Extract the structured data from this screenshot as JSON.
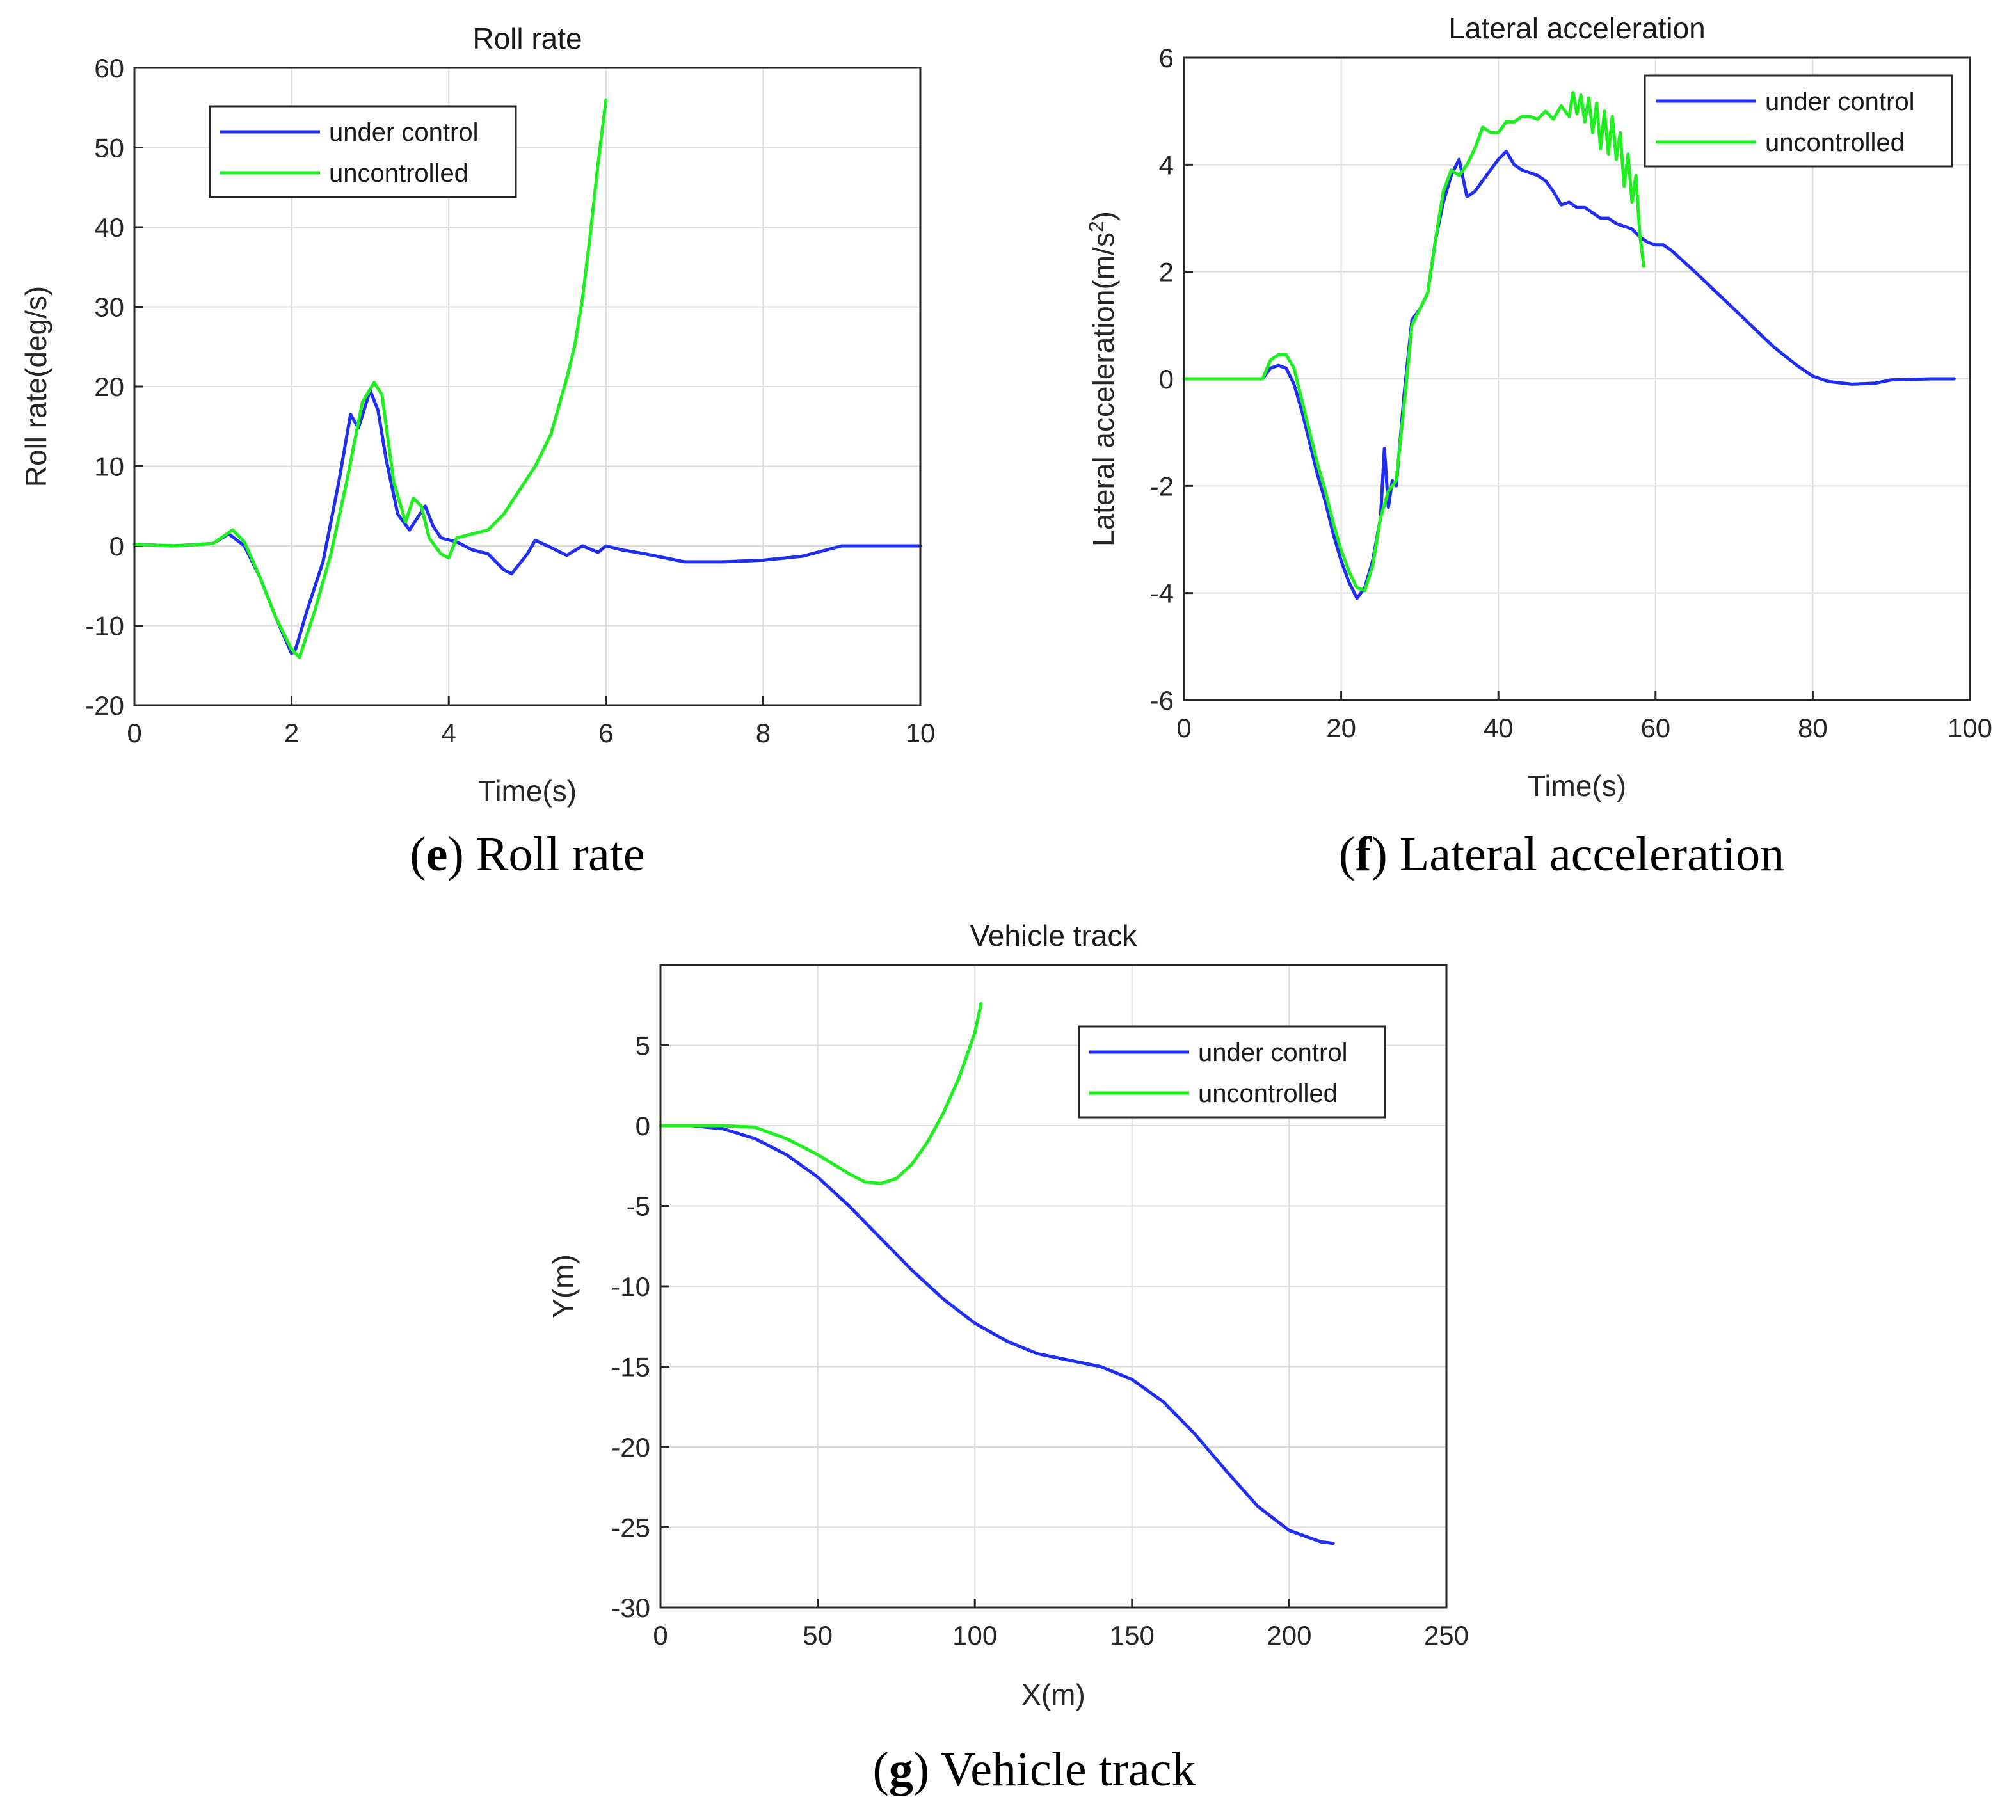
{
  "colors": {
    "under_control": "#1f2ef0",
    "uncontrolled": "#1ef01f"
  },
  "chart_data": [
    {
      "type": "line",
      "title": "Roll rate",
      "xlabel": "Time(s)",
      "ylabel": "Roll rate(deg/s)",
      "xlim": [
        0,
        10
      ],
      "ylim": [
        -20,
        60
      ],
      "xticks": [
        0,
        2,
        4,
        6,
        8,
        10
      ],
      "yticks": [
        -20,
        -10,
        0,
        10,
        20,
        30,
        40,
        50,
        60
      ],
      "xtick_labels": [
        "0",
        "2",
        "4",
        "6",
        "8",
        "10"
      ],
      "ytick_labels": [
        "-20",
        "-10",
        "0",
        "10",
        "20",
        "30",
        "40",
        "50",
        "60"
      ],
      "grid": true,
      "legend": "top-left",
      "caption_letter": "e",
      "caption_text": " Roll rate",
      "series": [
        {
          "name": "under control",
          "x": [
            0,
            0.5,
            1.0,
            1.2,
            1.4,
            1.6,
            1.8,
            2.0,
            2.05,
            2.2,
            2.4,
            2.6,
            2.75,
            2.85,
            3.0,
            3.1,
            3.2,
            3.35,
            3.5,
            3.6,
            3.7,
            3.8,
            3.9,
            4.1,
            4.3,
            4.5,
            4.7,
            4.8,
            5.0,
            5.1,
            5.3,
            5.5,
            5.7,
            5.9,
            6.0,
            6.2,
            6.5,
            7.0,
            7.5,
            8.0,
            8.5,
            9.0,
            9.5,
            10.0
          ],
          "y": [
            0.2,
            0,
            0.3,
            1.5,
            0,
            -4,
            -9,
            -13.5,
            -13,
            -8,
            -2,
            8,
            16.5,
            14.8,
            19.5,
            17,
            11,
            4,
            2,
            3.5,
            5,
            2.5,
            1,
            0.5,
            -0.5,
            -1,
            -3,
            -3.5,
            -1,
            0.7,
            -0.2,
            -1.2,
            0,
            -0.8,
            0,
            -0.5,
            -1,
            -2,
            -2,
            -1.8,
            -1.3,
            0,
            0,
            0
          ]
        },
        {
          "name": "uncontrolled",
          "x": [
            0,
            0.5,
            1.0,
            1.25,
            1.4,
            1.6,
            1.8,
            2.0,
            2.1,
            2.3,
            2.5,
            2.7,
            2.9,
            3.05,
            3.15,
            3.3,
            3.45,
            3.55,
            3.65,
            3.75,
            3.9,
            4.0,
            4.1,
            4.3,
            4.5,
            4.7,
            4.9,
            5.1,
            5.3,
            5.5,
            5.6,
            5.7,
            5.8,
            5.9,
            6.0
          ],
          "y": [
            0.2,
            0,
            0.3,
            2,
            0.5,
            -4,
            -9,
            -13,
            -14,
            -8,
            -1,
            8,
            18,
            20.5,
            19,
            8,
            3,
            6,
            5,
            1,
            -1,
            -1.5,
            1,
            1.5,
            2,
            4,
            7,
            10,
            14,
            21,
            25,
            31,
            39,
            48,
            56
          ]
        }
      ]
    },
    {
      "type": "line",
      "title": "Lateral acceleration",
      "xlabel": "Time(s)",
      "ylabel": "Lateral acceleration(m/s",
      "ylabel_sup": "2",
      "ylabel_close": ")",
      "xlim": [
        0,
        100
      ],
      "ylim": [
        -6,
        6
      ],
      "xticks": [
        0,
        20,
        40,
        60,
        80,
        100
      ],
      "yticks": [
        -6,
        -4,
        -2,
        0,
        2,
        4,
        6
      ],
      "xtick_labels": [
        "0",
        "20",
        "40",
        "60",
        "80",
        "100"
      ],
      "ytick_labels": [
        "-6",
        "-4",
        "-2",
        "0",
        "2",
        "4",
        "6"
      ],
      "grid": true,
      "legend": "top-right",
      "caption_letter": "f",
      "caption_text": " Lateral acceleration",
      "series": [
        {
          "name": "under control",
          "x": [
            0,
            5,
            10,
            11,
            12,
            13,
            14,
            15,
            16,
            17,
            18,
            19,
            20,
            21,
            22,
            23,
            24,
            25,
            25.5,
            26,
            26.5,
            27,
            28,
            29,
            30,
            31,
            32,
            33,
            34,
            35,
            36,
            37,
            38,
            39,
            40,
            41,
            42,
            43,
            44,
            45,
            46,
            47,
            48,
            49,
            50,
            51,
            52,
            53,
            54,
            55,
            56,
            57,
            58,
            59,
            60,
            61,
            62,
            65,
            70,
            75,
            78,
            80,
            82,
            85,
            88,
            90,
            95,
            98
          ],
          "y": [
            0,
            0,
            0,
            0.2,
            0.25,
            0.2,
            -0.1,
            -0.6,
            -1.2,
            -1.8,
            -2.3,
            -2.9,
            -3.4,
            -3.8,
            -4.1,
            -3.9,
            -3.4,
            -2.6,
            -1.3,
            -2.4,
            -1.9,
            -2.0,
            -0.3,
            1.1,
            1.3,
            1.6,
            2.6,
            3.3,
            3.8,
            4.1,
            3.4,
            3.5,
            3.7,
            3.9,
            4.1,
            4.25,
            4.0,
            3.9,
            3.85,
            3.8,
            3.7,
            3.5,
            3.25,
            3.3,
            3.2,
            3.2,
            3.1,
            3.0,
            3.0,
            2.9,
            2.85,
            2.8,
            2.65,
            2.55,
            2.5,
            2.5,
            2.4,
            2.0,
            1.3,
            0.6,
            0.25,
            0.05,
            -0.05,
            -0.1,
            -0.08,
            -0.02,
            0,
            0
          ]
        },
        {
          "name": "uncontrolled",
          "x": [
            0,
            5,
            10,
            11,
            12,
            13,
            14,
            15,
            16,
            17,
            18,
            19,
            20,
            21,
            22,
            23,
            24,
            25,
            26,
            27,
            28,
            29,
            30,
            31,
            32,
            33,
            34,
            35,
            36,
            37,
            38,
            39,
            40,
            41,
            42,
            43,
            44,
            45,
            46,
            47,
            48,
            49,
            49.5,
            50,
            50.5,
            51,
            51.5,
            52,
            52.5,
            53,
            53.5,
            54,
            54.5,
            55,
            55.5,
            56,
            56.5,
            57,
            57.5,
            58,
            58.5
          ],
          "y": [
            0,
            0,
            0,
            0.35,
            0.45,
            0.45,
            0.2,
            -0.4,
            -1.0,
            -1.6,
            -2.1,
            -2.7,
            -3.2,
            -3.6,
            -3.9,
            -3.95,
            -3.5,
            -2.6,
            -2.1,
            -1.9,
            -0.5,
            1.0,
            1.3,
            1.6,
            2.6,
            3.5,
            3.9,
            3.8,
            4.0,
            4.3,
            4.7,
            4.6,
            4.6,
            4.8,
            4.8,
            4.9,
            4.9,
            4.85,
            5.0,
            4.85,
            5.1,
            4.9,
            5.35,
            4.95,
            5.3,
            4.8,
            5.25,
            4.6,
            5.15,
            4.3,
            5.0,
            4.2,
            4.9,
            4.1,
            4.6,
            3.6,
            4.2,
            3.3,
            3.8,
            2.7,
            2.1
          ]
        }
      ]
    },
    {
      "type": "line",
      "title": "Vehicle track",
      "xlabel": "X(m)",
      "ylabel": "Y(m)",
      "xlim": [
        0,
        250
      ],
      "ylim": [
        -30,
        10
      ],
      "xticks": [
        0,
        50,
        100,
        150,
        200,
        250
      ],
      "yticks": [
        -30,
        -25,
        -20,
        -15,
        -10,
        -5,
        0,
        5
      ],
      "xtick_labels": [
        "0",
        "50",
        "100",
        "150",
        "200",
        "250"
      ],
      "ytick_labels": [
        "-30",
        "-25",
        "-20",
        "-15",
        "-10",
        "-5",
        "0",
        "5"
      ],
      "grid": true,
      "legend": "top-right",
      "caption_letter": "g",
      "caption_text": " Vehicle track",
      "series": [
        {
          "name": "under control",
          "x": [
            0,
            10,
            20,
            30,
            40,
            50,
            60,
            70,
            80,
            90,
            100,
            110,
            120,
            130,
            140,
            150,
            160,
            170,
            180,
            190,
            200,
            210,
            214
          ],
          "y": [
            0,
            0,
            -0.2,
            -0.8,
            -1.8,
            -3.2,
            -5.0,
            -7.0,
            -9.0,
            -10.8,
            -12.3,
            -13.4,
            -14.2,
            -14.6,
            -15.0,
            -15.8,
            -17.2,
            -19.2,
            -21.5,
            -23.7,
            -25.2,
            -25.9,
            -26.0
          ]
        },
        {
          "name": "uncontrolled",
          "x": [
            0,
            10,
            20,
            30,
            40,
            50,
            60,
            65,
            70,
            75,
            80,
            85,
            90,
            95,
            100,
            102
          ],
          "y": [
            0,
            0,
            0,
            -0.1,
            -0.8,
            -1.8,
            -3.0,
            -3.5,
            -3.6,
            -3.3,
            -2.4,
            -1.0,
            0.8,
            3.0,
            5.8,
            7.6
          ]
        }
      ]
    }
  ]
}
